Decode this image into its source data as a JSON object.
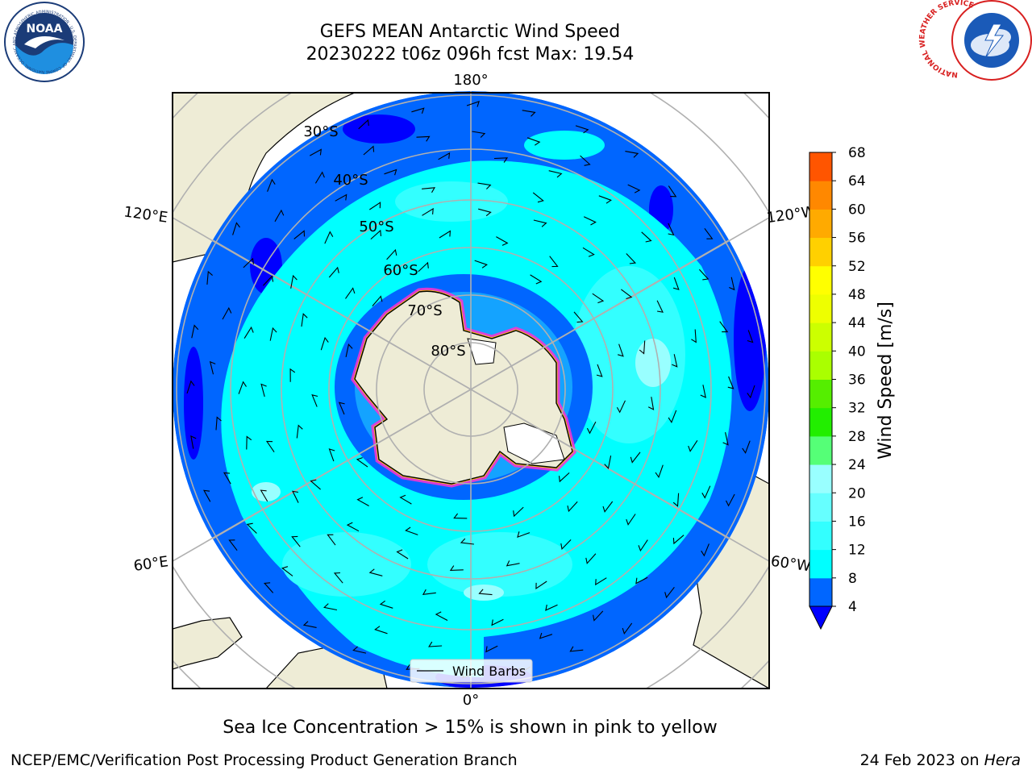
{
  "header": {
    "title_line1": "GEFS MEAN Antarctic Wind Speed",
    "title_line2": "20230222 t06z 096h fcst   Max: 19.54"
  },
  "logos": {
    "left": {
      "name": "noaa-logo",
      "text": "NOAA",
      "ring_text": "NATIONAL OCEANIC AND ATMOSPHERIC ADMINISTRATION · U.S. DEPARTMENT OF COMMERCE"
    },
    "right": {
      "name": "nws-logo",
      "ring_text": "NATIONAL WEATHER SERVICE"
    }
  },
  "map": {
    "meridian_labels": [
      {
        "id": "top",
        "text": "180°"
      },
      {
        "id": "bottom",
        "text": "0°"
      },
      {
        "id": "ul",
        "text": "120°E"
      },
      {
        "id": "ur",
        "text": "120°W"
      },
      {
        "id": "ll",
        "text": "60°E"
      },
      {
        "id": "lr",
        "text": "60°W"
      }
    ],
    "latitude_labels": [
      "30°S",
      "40°S",
      "50°S",
      "60°S",
      "70°S",
      "80°S"
    ],
    "legend": {
      "entry": "Wind Barbs"
    },
    "colors": {
      "land": "#eeecd6",
      "antarctica_ice": "#ffffff",
      "grid": "#b0b0b0"
    }
  },
  "colorbar": {
    "label": "Wind Speed [m/s]",
    "ticks": [
      "4",
      "8",
      "12",
      "16",
      "20",
      "24",
      "28",
      "32",
      "36",
      "40",
      "44",
      "48",
      "52",
      "56",
      "60",
      "64",
      "68"
    ],
    "colors": [
      "#0066ff",
      "#00ffff",
      "#33ffff",
      "#66ffff",
      "#99ffff",
      "#55ff77",
      "#22ee00",
      "#55ee00",
      "#aaff00",
      "#ccff00",
      "#eeff00",
      "#ffff00",
      "#ffd000",
      "#ffaa00",
      "#ff8800",
      "#ff5500",
      "#ff2200",
      "#ff0000"
    ],
    "under_color": "#0000ff"
  },
  "caption": "Sea Ice Concentration > 15% is shown in pink to yellow",
  "footer": {
    "left": "NCEP/EMC/Verification Post Processing Product Generation Branch",
    "right_date": "24 Feb 2023 on ",
    "right_host": "Hera"
  }
}
